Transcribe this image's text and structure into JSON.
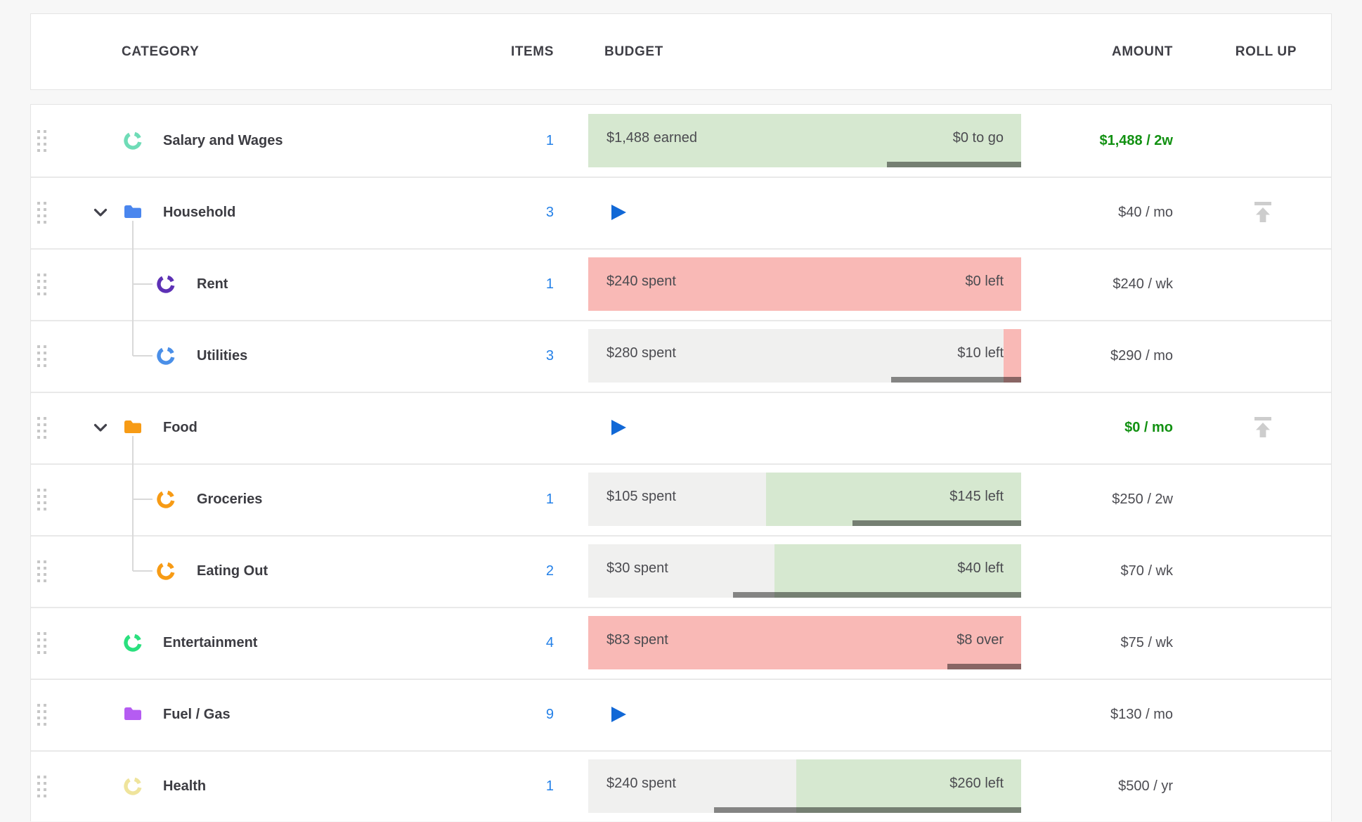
{
  "colors": {
    "page_bg": "#f7f7f7",
    "card_bg": "#ffffff",
    "card_border": "#e4e4e4",
    "row_divider": "#e9e9e9",
    "header_text": "#3f3f46",
    "name_text": "#3c3c42",
    "bar_text": "#4b4b50",
    "amount_text": "#4c4c52",
    "items_link": "#2380e8",
    "play_blue": "#1168d6",
    "positive_green": "#129112",
    "bar_green": "#d6e8d0",
    "bar_red": "#f9b9b6",
    "bar_gray": "#f0f0ef",
    "progress_overlay": "rgba(0,0,0,0.45)",
    "tree_line": "#d9d9d9",
    "drag_dots": "#c7c7c7",
    "rollup_gray": "#cdcdcd",
    "chevron": "#41414a"
  },
  "header": {
    "category": "CATEGORY",
    "items": "ITEMS",
    "budget": "BUDGET",
    "amount": "AMOUNT",
    "rollup": "ROLL UP"
  },
  "rows": [
    {
      "name": "Salary and Wages",
      "level": 0,
      "icon": "ring",
      "icon_color": "#6fdcb7",
      "chevron": false,
      "items": "1",
      "play": false,
      "bar": {
        "segments": [
          {
            "color": "bar_green",
            "to": 1
          }
        ],
        "left_label": "$1,488 earned",
        "right_label": "$0 to go",
        "progress_from": 0.69
      },
      "amount": "$1,488 / 2w",
      "amount_positive": true,
      "rollup": false
    },
    {
      "name": "Household",
      "level": 0,
      "icon": "folder",
      "icon_color": "#4a86ee",
      "chevron": true,
      "items": "3",
      "play": true,
      "bar": null,
      "amount": "$40 / mo",
      "amount_positive": false,
      "rollup": true
    },
    {
      "name": "Rent",
      "level": 1,
      "icon": "ring",
      "icon_color": "#5d31b5",
      "chevron": false,
      "items": "1",
      "play": false,
      "bar": {
        "segments": [
          {
            "color": "bar_red",
            "to": 1
          }
        ],
        "left_label": "$240 spent",
        "right_label": "$0 left",
        "progress_from": null
      },
      "amount": "$240 / wk",
      "amount_positive": false,
      "rollup": false
    },
    {
      "name": "Utilities",
      "level": 1,
      "icon": "ring",
      "icon_color": "#4a8fe8",
      "chevron": false,
      "items": "3",
      "play": false,
      "bar": {
        "segments": [
          {
            "color": "bar_gray",
            "to": 0.959
          },
          {
            "color": "bar_red",
            "to": 1
          }
        ],
        "left_label": "$280 spent",
        "right_label": "$10 left",
        "progress_from": 0.7
      },
      "amount": "$290 / mo",
      "amount_positive": false,
      "rollup": false
    },
    {
      "name": "Food",
      "level": 0,
      "icon": "folder",
      "icon_color": "#f79b15",
      "chevron": true,
      "items": "",
      "play": true,
      "bar": null,
      "amount": "$0 / mo",
      "amount_positive": true,
      "rollup": true
    },
    {
      "name": "Groceries",
      "level": 1,
      "icon": "ring",
      "icon_color": "#f79b15",
      "chevron": false,
      "items": "1",
      "play": false,
      "bar": {
        "segments": [
          {
            "color": "bar_gray",
            "to": 0.41
          },
          {
            "color": "bar_green",
            "to": 1
          }
        ],
        "left_label": "$105 spent",
        "right_label": "$145 left",
        "progress_from": 0.61
      },
      "amount": "$250 / 2w",
      "amount_positive": false,
      "rollup": false
    },
    {
      "name": "Eating Out",
      "level": 1,
      "icon": "ring",
      "icon_color": "#f79b15",
      "chevron": false,
      "items": "2",
      "play": false,
      "bar": {
        "segments": [
          {
            "color": "bar_gray",
            "to": 0.43
          },
          {
            "color": "bar_green",
            "to": 1
          }
        ],
        "left_label": "$30 spent",
        "right_label": "$40 left",
        "progress_from": 0.335
      },
      "amount": "$70 / wk",
      "amount_positive": false,
      "rollup": false
    },
    {
      "name": "Entertainment",
      "level": 0,
      "icon": "ring",
      "icon_color": "#2ae07e",
      "chevron": false,
      "items": "4",
      "play": false,
      "bar": {
        "segments": [
          {
            "color": "bar_red",
            "to": 1
          }
        ],
        "left_label": "$83 spent",
        "right_label": "$8 over",
        "progress_from": 0.83
      },
      "amount": "$75 / wk",
      "amount_positive": false,
      "rollup": false
    },
    {
      "name": "Fuel / Gas",
      "level": 0,
      "icon": "folder",
      "icon_color": "#b55cf2",
      "chevron": false,
      "items": "9",
      "play": true,
      "bar": null,
      "amount": "$130 / mo",
      "amount_positive": false,
      "rollup": false
    },
    {
      "name": "Health",
      "level": 0,
      "icon": "ring",
      "icon_color": "#efe49c",
      "chevron": false,
      "items": "1",
      "play": false,
      "bar": {
        "segments": [
          {
            "color": "bar_gray",
            "to": 0.48
          },
          {
            "color": "bar_green",
            "to": 1
          }
        ],
        "left_label": "$240 spent",
        "right_label": "$260 left",
        "progress_from": 0.29
      },
      "amount": "$500 / yr",
      "amount_positive": false,
      "rollup": false
    }
  ]
}
